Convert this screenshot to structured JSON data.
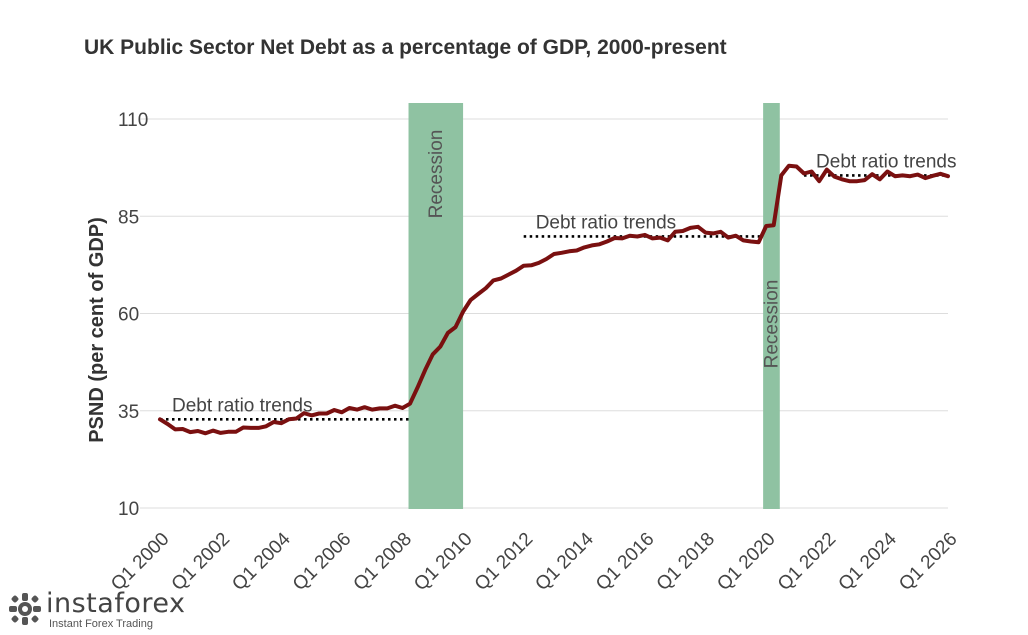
{
  "title": "UK Public Sector Net Debt as a percentage of GDP, 2000-present",
  "logo": {
    "brand": "instaforex",
    "tagline": "Instant Forex Trading"
  },
  "colors": {
    "line": "#7a1010",
    "recession": "#8fc2a2",
    "grid": "#dddddd",
    "trend": "#000000"
  },
  "chart_data": {
    "type": "line",
    "title": "UK Public Sector Net Debt as a percentage of GDP, 2000-present",
    "xlabel": "",
    "ylabel": "PSND (per cent of GDP)",
    "ylim": [
      10,
      110
    ],
    "yticks": [
      10,
      35,
      60,
      85,
      110
    ],
    "grid": true,
    "x_labels": [
      "Q1 2000",
      "Q1 2002",
      "Q1 2004",
      "Q1 2006",
      "Q1 2008",
      "Q1 2010",
      "Q1 2012",
      "Q1 2014",
      "Q1 2016",
      "Q1 2018",
      "Q1 2020",
      "Q1 2022",
      "Q1 2024",
      "Q1 2026"
    ],
    "x_start": 2000.0,
    "x_end": 2026.0,
    "series": [
      {
        "values": [
          [
            2000.0,
            32.8
          ],
          [
            2000.25,
            31.6
          ],
          [
            2000.5,
            30.2
          ],
          [
            2000.75,
            30.3
          ],
          [
            2001.0,
            29.5
          ],
          [
            2001.25,
            29.8
          ],
          [
            2001.5,
            29.2
          ],
          [
            2001.75,
            29.9
          ],
          [
            2002.0,
            29.3
          ],
          [
            2002.25,
            29.6
          ],
          [
            2002.5,
            29.6
          ],
          [
            2002.75,
            30.7
          ],
          [
            2003.0,
            30.6
          ],
          [
            2003.25,
            30.6
          ],
          [
            2003.5,
            31.0
          ],
          [
            2003.75,
            32.1
          ],
          [
            2004.0,
            31.8
          ],
          [
            2004.25,
            32.8
          ],
          [
            2004.5,
            33.0
          ],
          [
            2004.75,
            34.4
          ],
          [
            2005.0,
            33.8
          ],
          [
            2005.25,
            34.3
          ],
          [
            2005.5,
            34.3
          ],
          [
            2005.75,
            35.2
          ],
          [
            2006.0,
            34.6
          ],
          [
            2006.25,
            35.7
          ],
          [
            2006.5,
            35.3
          ],
          [
            2006.75,
            35.9
          ],
          [
            2007.0,
            35.3
          ],
          [
            2007.25,
            35.6
          ],
          [
            2007.5,
            35.6
          ],
          [
            2007.75,
            36.3
          ],
          [
            2008.0,
            35.7
          ],
          [
            2008.25,
            36.8
          ],
          [
            2008.5,
            41.0
          ],
          [
            2008.75,
            45.5
          ],
          [
            2009.0,
            49.5
          ],
          [
            2009.25,
            51.5
          ],
          [
            2009.5,
            55.0
          ],
          [
            2009.75,
            56.5
          ],
          [
            2010.0,
            60.5
          ],
          [
            2010.25,
            63.5
          ],
          [
            2010.5,
            65.0
          ],
          [
            2010.75,
            66.5
          ],
          [
            2011.0,
            68.5
          ],
          [
            2011.25,
            69.0
          ],
          [
            2011.5,
            70.0
          ],
          [
            2011.75,
            71.0
          ],
          [
            2012.0,
            72.3
          ],
          [
            2012.25,
            72.4
          ],
          [
            2012.5,
            73.0
          ],
          [
            2012.75,
            74.0
          ],
          [
            2013.0,
            75.3
          ],
          [
            2013.25,
            75.6
          ],
          [
            2013.5,
            76.0
          ],
          [
            2013.75,
            76.2
          ],
          [
            2014.0,
            77.0
          ],
          [
            2014.25,
            77.5
          ],
          [
            2014.5,
            77.8
          ],
          [
            2014.75,
            78.5
          ],
          [
            2015.0,
            79.4
          ],
          [
            2015.25,
            79.3
          ],
          [
            2015.5,
            80.0
          ],
          [
            2015.75,
            79.8
          ],
          [
            2016.0,
            80.2
          ],
          [
            2016.25,
            79.3
          ],
          [
            2016.5,
            79.5
          ],
          [
            2016.75,
            78.8
          ],
          [
            2017.0,
            81.0
          ],
          [
            2017.25,
            81.2
          ],
          [
            2017.5,
            82.0
          ],
          [
            2017.75,
            82.3
          ],
          [
            2018.0,
            80.8
          ],
          [
            2018.25,
            80.6
          ],
          [
            2018.5,
            81.0
          ],
          [
            2018.75,
            79.5
          ],
          [
            2019.0,
            80.0
          ],
          [
            2019.25,
            78.8
          ],
          [
            2019.5,
            78.5
          ],
          [
            2019.75,
            78.3
          ],
          [
            2020.0,
            82.5
          ],
          [
            2020.25,
            82.7
          ],
          [
            2020.5,
            95.5
          ],
          [
            2020.75,
            98.0
          ],
          [
            2021.0,
            97.8
          ],
          [
            2021.25,
            96.0
          ],
          [
            2021.5,
            96.5
          ],
          [
            2021.75,
            94.0
          ],
          [
            2022.0,
            97.0
          ],
          [
            2022.25,
            95.2
          ],
          [
            2022.5,
            94.5
          ],
          [
            2022.75,
            94.0
          ],
          [
            2023.0,
            94.0
          ],
          [
            2023.25,
            94.3
          ],
          [
            2023.5,
            95.8
          ],
          [
            2023.75,
            94.5
          ],
          [
            2024.0,
            96.5
          ],
          [
            2024.25,
            95.3
          ],
          [
            2024.5,
            95.5
          ],
          [
            2024.75,
            95.3
          ],
          [
            2025.0,
            95.7
          ],
          [
            2025.25,
            94.8
          ],
          [
            2025.5,
            95.4
          ],
          [
            2025.75,
            95.9
          ],
          [
            2026.0,
            95.3
          ]
        ]
      }
    ],
    "recessions": [
      {
        "label": "Recession",
        "start": 2008.2,
        "end": 2010.0
      },
      {
        "label": "Recession",
        "start": 2019.9,
        "end": 2020.45
      }
    ],
    "trends": [
      {
        "label": "Debt ratio trends",
        "start": 2000.0,
        "end": 2008.2,
        "y": 32.8
      },
      {
        "label": "Debt ratio trends",
        "start": 2012.0,
        "end": 2019.9,
        "y": 79.8
      },
      {
        "label": "Debt ratio trends",
        "start": 2021.25,
        "end": 2026.0,
        "y": 95.5
      }
    ]
  }
}
